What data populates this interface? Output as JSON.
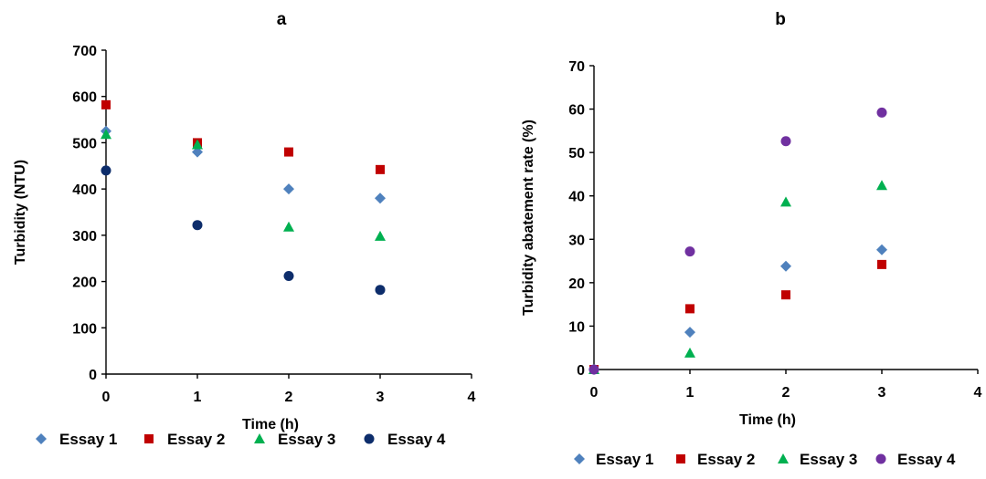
{
  "chart_data": [
    {
      "type": "scatter",
      "panel_label": "a",
      "xlabel": "Time (h)",
      "ylabel": "Turbidity (NTU)",
      "xlim": [
        0,
        4
      ],
      "ylim": [
        0,
        700
      ],
      "x_ticks": [
        0,
        1,
        2,
        3,
        4
      ],
      "y_ticks": [
        0,
        100,
        200,
        300,
        400,
        500,
        600,
        700
      ],
      "grid": false,
      "legend_position": "bottom",
      "x": [
        0,
        1,
        2,
        3
      ],
      "series": [
        {
          "name": "Essay 1",
          "marker": "diamond",
          "color": "#4F81BD",
          "values": [
            525,
            480,
            400,
            380
          ]
        },
        {
          "name": "Essay 2",
          "marker": "square",
          "color": "#C00000",
          "values": [
            582,
            500,
            480,
            442
          ]
        },
        {
          "name": "Essay 3",
          "marker": "triangle",
          "color": "#00B050",
          "values": [
            518,
            496,
            318,
            298
          ]
        },
        {
          "name": "Essay 4",
          "marker": "circle",
          "color": "#0D2D6B",
          "values": [
            440,
            322,
            212,
            182
          ]
        }
      ]
    },
    {
      "type": "scatter",
      "panel_label": "b",
      "xlabel": "Time (h)",
      "ylabel": "Turbidity abatement rate (%)",
      "xlim": [
        0,
        4
      ],
      "ylim": [
        0,
        70
      ],
      "x_ticks": [
        0,
        1,
        2,
        3,
        4
      ],
      "y_ticks": [
        0,
        10,
        20,
        30,
        40,
        50,
        60,
        70
      ],
      "grid": false,
      "legend_position": "bottom",
      "x": [
        0,
        1,
        2,
        3
      ],
      "series": [
        {
          "name": "Essay 1",
          "marker": "diamond",
          "color": "#4F81BD",
          "values": [
            0,
            8.6,
            23.8,
            27.6
          ]
        },
        {
          "name": "Essay 2",
          "marker": "square",
          "color": "#C00000",
          "values": [
            0,
            14,
            17.2,
            24.2
          ]
        },
        {
          "name": "Essay 3",
          "marker": "triangle",
          "color": "#00B050",
          "values": [
            0,
            3.8,
            38.6,
            42.4
          ]
        },
        {
          "name": "Essay 4",
          "marker": "circle",
          "color": "#7030A0",
          "values": [
            0,
            27.2,
            52.6,
            59.2
          ]
        }
      ]
    }
  ]
}
